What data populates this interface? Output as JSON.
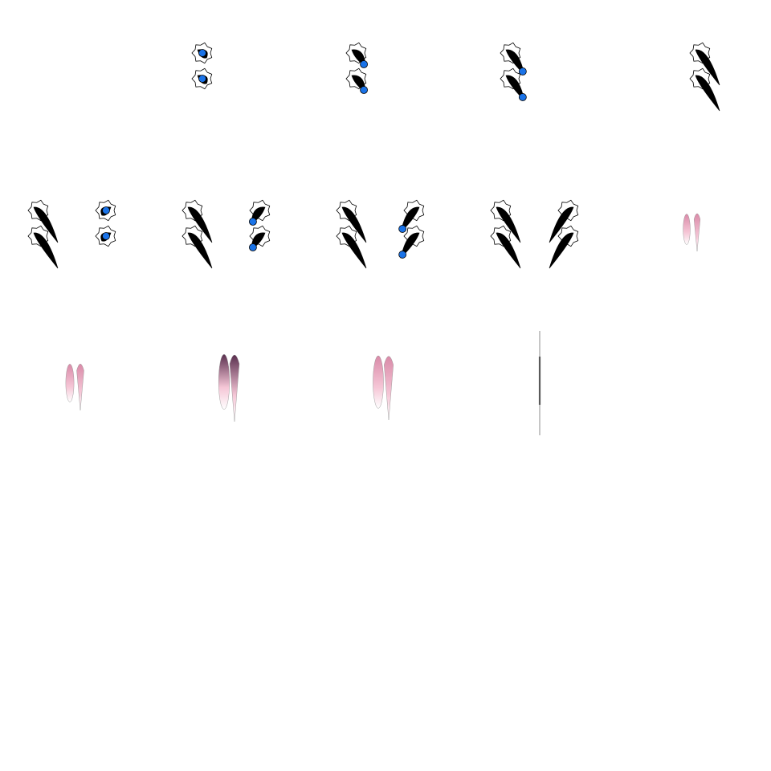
{
  "sprite_sheet": {
    "grid": {
      "columns": 5,
      "rows": 5
    },
    "colors": {
      "background": "#ffffff",
      "claw": "#000000",
      "glow": "#1a73e8",
      "outline": "#000000",
      "pink_light": "#f5c6d6",
      "pink_mid": "#d98aa8",
      "plum": "#5a2f4f",
      "streak": "#8c8c8c"
    },
    "frames": [
      {
        "index": 1,
        "kind": "empty"
      },
      {
        "index": 2,
        "kind": "claw-charge",
        "side": "left",
        "growth": 0.0
      },
      {
        "index": 3,
        "kind": "claw-charge",
        "side": "left",
        "growth": 0.35
      },
      {
        "index": 4,
        "kind": "claw-charge",
        "side": "left",
        "growth": 0.7
      },
      {
        "index": 5,
        "kind": "claw-full",
        "side": "left"
      },
      {
        "index": 6,
        "kind": "claw-charge",
        "side": "both",
        "growth": 0.0
      },
      {
        "index": 7,
        "kind": "claw-charge",
        "side": "both",
        "growth": 0.35
      },
      {
        "index": 8,
        "kind": "claw-charge",
        "side": "both",
        "growth": 0.7
      },
      {
        "index": 9,
        "kind": "claw-full",
        "side": "both"
      },
      {
        "index": 10,
        "kind": "spark",
        "size": 0.25
      },
      {
        "index": 11,
        "kind": "spark",
        "size": 0.4
      },
      {
        "index": 12,
        "kind": "spark-dark",
        "size": 0.75
      },
      {
        "index": 13,
        "kind": "spark",
        "size": 0.7
      },
      {
        "index": 14,
        "kind": "streak",
        "size": 1.0
      },
      {
        "index": 15,
        "kind": "empty"
      },
      {
        "index": 16,
        "kind": "empty"
      },
      {
        "index": 17,
        "kind": "empty"
      },
      {
        "index": 18,
        "kind": "empty"
      },
      {
        "index": 19,
        "kind": "empty"
      },
      {
        "index": 20,
        "kind": "empty"
      },
      {
        "index": 21,
        "kind": "empty"
      },
      {
        "index": 22,
        "kind": "empty"
      },
      {
        "index": 23,
        "kind": "empty"
      },
      {
        "index": 24,
        "kind": "empty"
      },
      {
        "index": 25,
        "kind": "empty"
      }
    ]
  }
}
